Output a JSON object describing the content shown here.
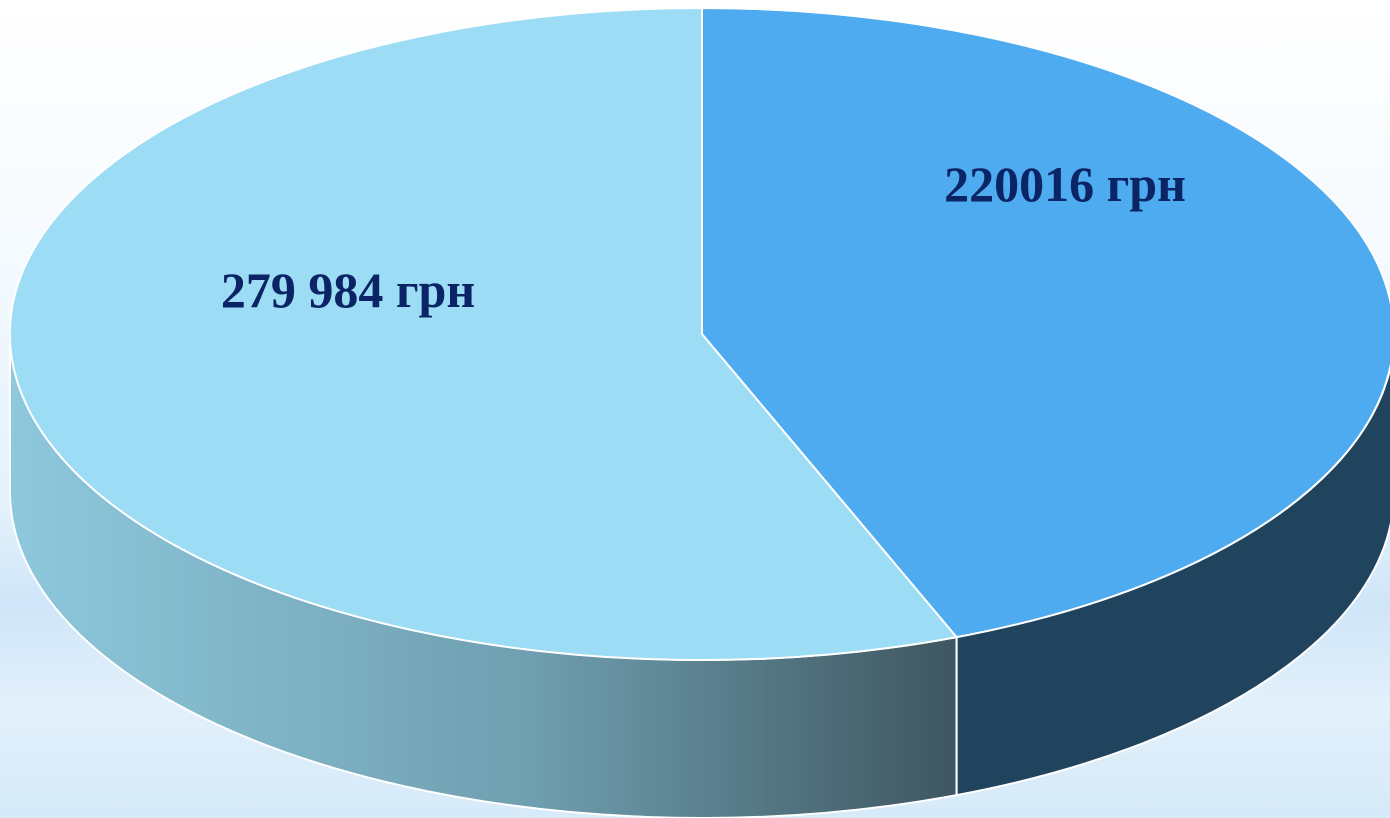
{
  "chart_data": {
    "type": "pie",
    "style": "3d",
    "slices": [
      {
        "label": "220016 грн",
        "value": 220016,
        "color": "#4eabef",
        "side_color": "#20435e"
      },
      {
        "label": "279 984 грн",
        "value": 279984,
        "color": "#9cdcf5",
        "side_color_light": "#86c2d8",
        "side_color_dark": "#3e5660"
      }
    ],
    "legend": "none"
  }
}
